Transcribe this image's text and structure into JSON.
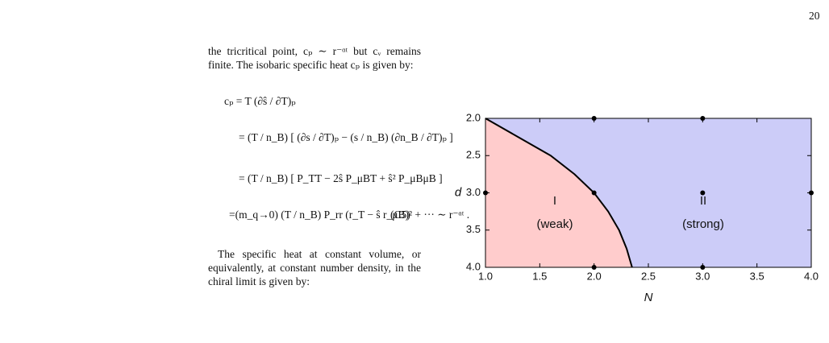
{
  "header": {
    "page_number": "20"
  },
  "body": {
    "paragraph_1": "the tricritical point, cₚ ∼ r⁻ᵅᵗ but cᵥ remains finite. The isobaric specific heat cₚ is given by:",
    "equation": {
      "lines": [
        "cₚ = T (∂ŝ / ∂T)ₚ",
        "= (T / n_B) [ (∂s / ∂T)ₚ − (s / n_B) (∂n_B / ∂T)ₚ ]",
        "= (T / n_B) [ P_TT − 2ŝ P_μBT + ŝ² P_μBμB ]",
        "=(m_q→0) (T / n_B) P_rr (r_T − ŝ r_μB)² + ··· ∼ r⁻ᵅᵗ ."
      ],
      "number": "(C5)"
    },
    "paragraph_2": "The specific heat at constant volume, or equivalently, at constant number density, in the chiral limit is given by:"
  },
  "chart_data": {
    "type": "phase_diagram",
    "x_label": "N",
    "y_label": "d",
    "xlim": [
      1.0,
      4.0
    ],
    "ylim": [
      4.0,
      2.0
    ],
    "xticks": [
      {
        "value": 1.0,
        "label": "1.0"
      },
      {
        "value": 1.5,
        "label": "1.5"
      },
      {
        "value": 2.0,
        "label": "2.0"
      },
      {
        "value": 2.5,
        "label": "2.5"
      },
      {
        "value": 3.0,
        "label": "3.0"
      },
      {
        "value": 3.5,
        "label": "3.5"
      },
      {
        "value": 4.0,
        "label": "4.0"
      }
    ],
    "yticks": [
      {
        "value": 2.0,
        "label": "2.0"
      },
      {
        "value": 2.5,
        "label": "2.5"
      },
      {
        "value": 3.0,
        "label": "3.0"
      },
      {
        "value": 3.5,
        "label": "3.5"
      },
      {
        "value": 4.0,
        "label": "4.0"
      }
    ],
    "boundary": {
      "N": [
        1.0,
        1.3,
        1.6,
        1.82,
        2.0,
        2.13,
        2.23,
        2.3,
        2.35
      ],
      "d": [
        2.0,
        2.25,
        2.5,
        2.75,
        3.0,
        3.25,
        3.5,
        3.75,
        4.0
      ],
      "color": "#000000"
    },
    "regions": [
      {
        "name": "I",
        "label": "(weak)",
        "color": "#ffcccc"
      },
      {
        "name": "II",
        "label": "(strong)",
        "color": "#ccccf8"
      }
    ],
    "points": {
      "N": [
        2,
        3,
        1,
        2,
        3,
        4,
        2,
        3
      ],
      "d": [
        2,
        2,
        3,
        3,
        3,
        3,
        4,
        4
      ],
      "color": "#000000"
    }
  }
}
